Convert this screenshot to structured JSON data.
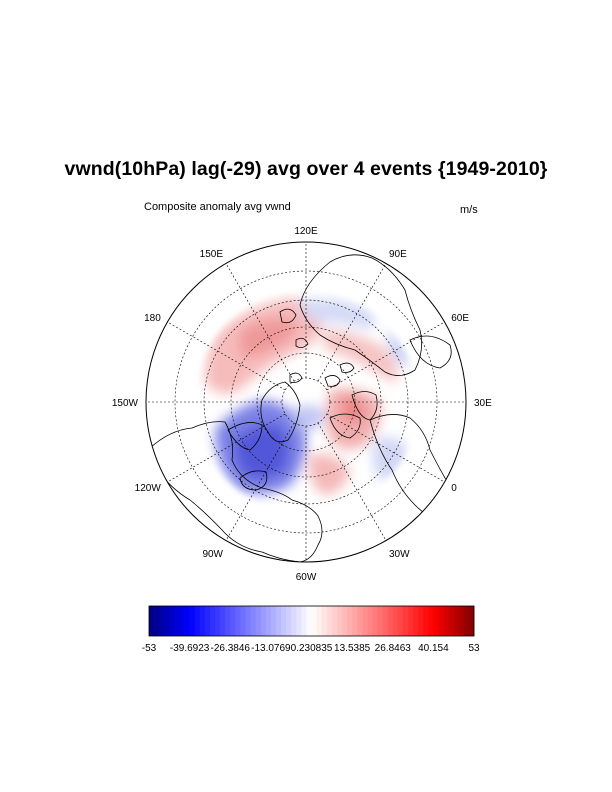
{
  "title": "vwnd(10hPa) lag(-29) avg over 4 events {1949-2010}",
  "left_subtitle": "Composite anomaly avg vwnd",
  "right_subtitle": "m/s",
  "projection": "north-polar-stereographic",
  "longitude_labels": [
    {
      "lon": 120,
      "text": "120E"
    },
    {
      "lon": 90,
      "text": "90E"
    },
    {
      "lon": 60,
      "text": "60E"
    },
    {
      "lon": 30,
      "text": "30E"
    },
    {
      "lon": 0,
      "text": "0"
    },
    {
      "lon": -30,
      "text": "30W"
    },
    {
      "lon": -60,
      "text": "60W"
    },
    {
      "lon": -90,
      "text": "90W"
    },
    {
      "lon": -120,
      "text": "120W"
    },
    {
      "lon": -150,
      "text": "150W"
    },
    {
      "lon": 180,
      "text": "180"
    },
    {
      "lon": 150,
      "text": "150E"
    }
  ],
  "colorbar": {
    "min": -53,
    "max": 53,
    "colormap": "blue-white-red",
    "tick_labels": [
      "-53",
      "-39.6923",
      "-26.3846",
      "-13.0769",
      "0.230835",
      "13.5385",
      "26.8463",
      "40.154",
      "53"
    ]
  },
  "colors": {
    "negative_anomaly": "#3a3ad6",
    "positive_anomaly": "#f0a0a0",
    "coastline": "#000000",
    "grid": "#000000"
  }
}
